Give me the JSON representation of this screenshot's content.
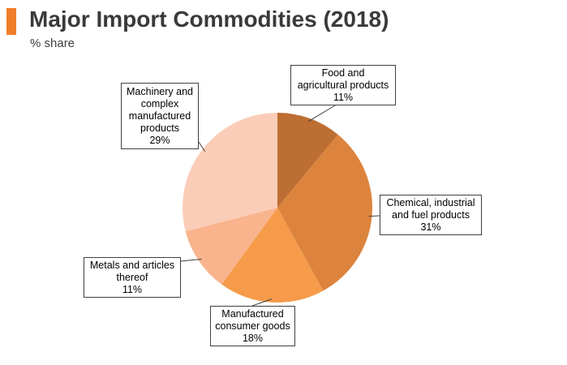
{
  "header": {
    "title": "Major Import Commodities (2018)",
    "subtitle": "% share",
    "accent_color": "#f07d2a"
  },
  "chart_data": {
    "type": "pie",
    "title": "Major Import Commodities (2018)",
    "subtitle": "% share",
    "start_angle_deg": 0,
    "direction": "clockwise",
    "slices": [
      {
        "label_lines": [
          "Food and",
          "agricultural products"
        ],
        "value": 11,
        "value_label": "11%",
        "color": "#bd6e32"
      },
      {
        "label_lines": [
          "Chemical, industrial",
          "and fuel products"
        ],
        "value": 31,
        "value_label": "31%",
        "color": "#dc843e"
      },
      {
        "label_lines": [
          "Manufactured",
          "consumer goods"
        ],
        "value": 18,
        "value_label": "18%",
        "color": "#f59b49"
      },
      {
        "label_lines": [
          "Metals and articles",
          "thereof"
        ],
        "value": 11,
        "value_label": "11%",
        "color": "#f9b48e"
      },
      {
        "label_lines": [
          "Machinery and",
          "complex",
          "manufactured",
          "products"
        ],
        "value": 29,
        "value_label": "29%",
        "color": "#fbcdb8"
      }
    ]
  }
}
